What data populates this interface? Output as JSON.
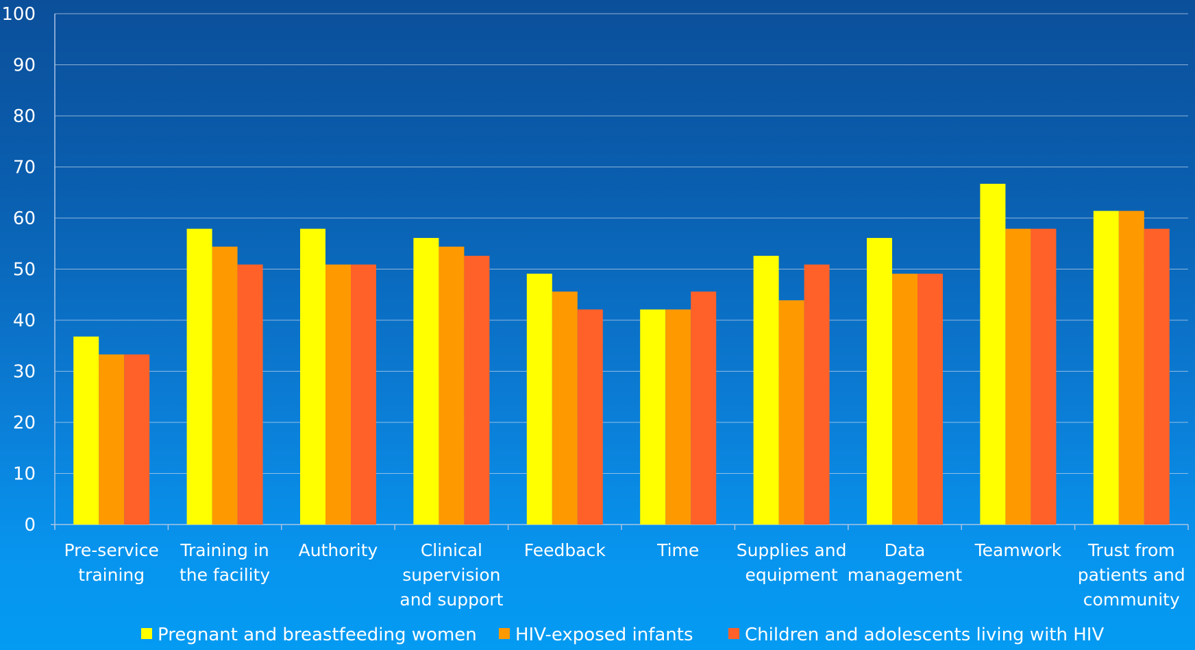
{
  "chart_data": {
    "type": "bar",
    "categories": [
      [
        "Pre-service",
        "training"
      ],
      [
        "Training in",
        "the facility"
      ],
      [
        "Authority"
      ],
      [
        "Clinical",
        "supervision",
        "and support"
      ],
      [
        "Feedback"
      ],
      [
        "Time"
      ],
      [
        "Supplies and",
        "equipment"
      ],
      [
        "Data",
        "management"
      ],
      [
        "Teamwork"
      ],
      [
        "Trust from",
        "patients and",
        "community"
      ]
    ],
    "series": [
      {
        "name": "Pregnant and breastfeeding women",
        "color": "#ffff00",
        "values": [
          36.8,
          57.9,
          57.9,
          56.1,
          49.1,
          42.1,
          52.6,
          56.1,
          66.7,
          61.4
        ]
      },
      {
        "name": "HIV-exposed infants",
        "color": "#ff9900",
        "values": [
          33.3,
          54.4,
          50.9,
          54.4,
          45.6,
          42.1,
          43.9,
          49.1,
          57.9,
          61.4
        ]
      },
      {
        "name": "Children and adolescents living with HIV",
        "color": "#ff6128",
        "values": [
          33.3,
          50.9,
          50.9,
          52.6,
          42.1,
          45.6,
          50.9,
          49.1,
          57.9,
          57.9
        ]
      }
    ],
    "yticks": [
      "0",
      "10",
      "20",
      "30",
      "40",
      "50",
      "60",
      "70",
      "80",
      "90",
      "100"
    ],
    "ylim": [
      0,
      100
    ],
    "grid": true,
    "legend_position": "bottom"
  }
}
